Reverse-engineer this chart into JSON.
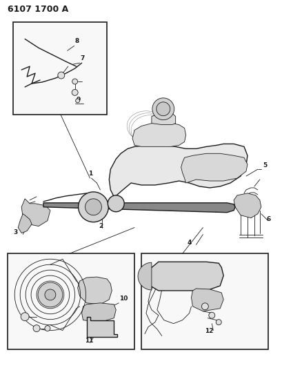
{
  "title": "6107 1700 A",
  "bg_color": "#ffffff",
  "line_color": "#1a1a1a",
  "title_fontsize": 9,
  "label_fontsize": 6.5,
  "fig_width": 4.1,
  "fig_height": 5.33,
  "dpi": 100
}
